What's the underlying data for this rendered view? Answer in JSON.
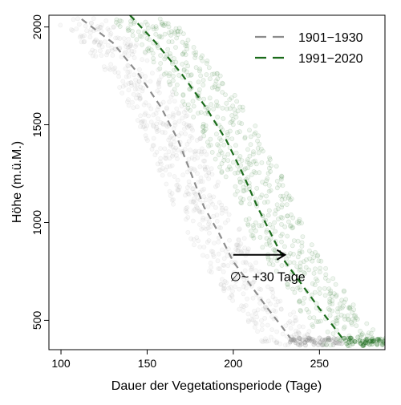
{
  "chart_data": {
    "type": "scatter",
    "title": "",
    "xlabel": "Dauer der Vegetationsperiode (Tage)",
    "ylabel": "Höhe (m.ü.M.)",
    "xlim": [
      93,
      288
    ],
    "ylim": [
      350,
      2060
    ],
    "x_ticks": [
      100,
      150,
      200,
      250
    ],
    "y_ticks": [
      500,
      1000,
      1500,
      2000
    ],
    "legend_position": "top-right",
    "grid": false,
    "series": [
      {
        "name": "1901−1930",
        "color": "#8c8c8c",
        "fit_line": [
          {
            "x": 112,
            "y": 2040
          },
          {
            "x": 130,
            "y": 1920
          },
          {
            "x": 145,
            "y": 1760
          },
          {
            "x": 158,
            "y": 1590
          },
          {
            "x": 168,
            "y": 1420
          },
          {
            "x": 176,
            "y": 1240
          },
          {
            "x": 183,
            "y": 1080
          },
          {
            "x": 192,
            "y": 940
          },
          {
            "x": 200,
            "y": 800
          },
          {
            "x": 210,
            "y": 680
          },
          {
            "x": 220,
            "y": 560
          },
          {
            "x": 228,
            "y": 470
          },
          {
            "x": 233,
            "y": 410
          }
        ],
        "point_band": {
          "x_min_shift": -18,
          "x_max_shift": 14,
          "y_min": 370,
          "y_max": 2050
        }
      },
      {
        "name": "1991−2020",
        "color": "#1a6b1a",
        "fit_line": [
          {
            "x": 140,
            "y": 2060
          },
          {
            "x": 155,
            "y": 1920
          },
          {
            "x": 170,
            "y": 1760
          },
          {
            "x": 184,
            "y": 1590
          },
          {
            "x": 196,
            "y": 1420
          },
          {
            "x": 206,
            "y": 1240
          },
          {
            "x": 214,
            "y": 1080
          },
          {
            "x": 222,
            "y": 940
          },
          {
            "x": 230,
            "y": 800
          },
          {
            "x": 240,
            "y": 680
          },
          {
            "x": 250,
            "y": 560
          },
          {
            "x": 258,
            "y": 470
          },
          {
            "x": 264,
            "y": 400
          }
        ],
        "point_band": {
          "x_min_shift": -12,
          "x_max_shift": 22,
          "y_min": 370,
          "y_max": 2050
        }
      }
    ],
    "annotations": [
      {
        "type": "arrow",
        "from": {
          "x": 200,
          "y": 835
        },
        "to": {
          "x": 230,
          "y": 835
        },
        "text": "∅~ +30 Tage",
        "text_anchor": {
          "x": 200,
          "y": 700
        }
      }
    ]
  }
}
